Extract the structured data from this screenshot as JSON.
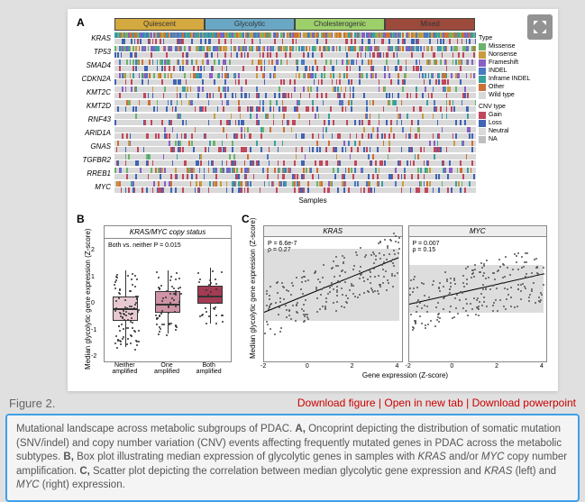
{
  "panelA": {
    "label": "A",
    "headers": [
      {
        "label": "Quiescent",
        "color": "#d4a93f"
      },
      {
        "label": "Glycolytic",
        "color": "#6aa7c4"
      },
      {
        "label": "Cholesterogenic",
        "color": "#9dcf6b"
      },
      {
        "label": "Mixed",
        "color": "#9c4a3c"
      }
    ],
    "genes": [
      "KRAS",
      "TP53",
      "SMAD4",
      "CDKN2A",
      "KMT2C",
      "KMT2D",
      "RNF43",
      "ARID1A",
      "GNAS",
      "TGFBR2",
      "RREB1",
      "MYC"
    ],
    "samples_label": "Samples",
    "legend_mut": {
      "title": "Type",
      "items": [
        {
          "label": "Missense",
          "color": "#6bb36b"
        },
        {
          "label": "Nonsense",
          "color": "#c99b3e"
        },
        {
          "label": "Frameshift",
          "color": "#8a5fc2"
        },
        {
          "label": "INDEL",
          "color": "#4a78c2"
        },
        {
          "label": "Inframe INDEL",
          "color": "#3aa09e"
        },
        {
          "label": "Other",
          "color": "#cc7133"
        },
        {
          "label": "Wild type",
          "color": "#d9d9d9"
        }
      ]
    },
    "legend_cnv": {
      "title": "CNV type",
      "items": [
        {
          "label": "Gain",
          "color": "#c0475d"
        },
        {
          "label": "Loss",
          "color": "#3f64b3"
        },
        {
          "label": "Neutral",
          "color": "#d9d9d9"
        },
        {
          "label": "NA",
          "color": "#bfbfbf"
        }
      ]
    },
    "mut_density": [
      0.95,
      0.7,
      0.35,
      0.35,
      0.2,
      0.2,
      0.1,
      0.1,
      0.1,
      0.08,
      0.3,
      0.3
    ],
    "cells_per_group": 60
  },
  "panelB": {
    "label": "B",
    "title": "KRAS/MYC copy status",
    "annotation": "Both vs. neither P = 0.015",
    "y_label": "Median glycolytic gene expression (Z-score)",
    "ylim": [
      -2,
      2
    ],
    "ytick_step": 1,
    "categories": [
      {
        "label": "Neither\namplified",
        "color": "#e8c9d2",
        "median": -0.15,
        "q1": -0.6,
        "q3": 0.3,
        "low": -1.6,
        "high": 1.3,
        "n": 90
      },
      {
        "label": "One\namplified",
        "color": "#cf94a5",
        "median": 0.05,
        "q1": -0.3,
        "q3": 0.5,
        "low": -1.1,
        "high": 1.3,
        "n": 60
      },
      {
        "label": "Both\namplified",
        "color": "#a43b55",
        "median": 0.35,
        "q1": 0.05,
        "q3": 0.7,
        "low": -0.7,
        "high": 1.4,
        "n": 30
      }
    ],
    "jitter_color": "#333333"
  },
  "panelC": {
    "label": "C",
    "y_label": "Median glycolytic gene expression (Z-score)",
    "x_label": "Gene expression (Z-score)",
    "xlim": [
      -2,
      4
    ],
    "xtick_vals": [
      -2,
      0,
      2,
      4
    ],
    "ylim": [
      -2,
      2
    ],
    "ytick_step": 1,
    "subplots": [
      {
        "title": "KRAS",
        "stats": "P = 6.6e-7\nρ = 0.27",
        "n": 220,
        "slope": 0.27,
        "intercept": 0.0
      },
      {
        "title": "MYC",
        "stats": "P = 0.007\nρ = 0.15",
        "n": 220,
        "slope": 0.15,
        "intercept": 0.0
      }
    ],
    "point_color": "#555555",
    "trend_color": "#000000",
    "band_color": "rgba(120,120,120,0.25)"
  },
  "figure_meta": {
    "figure_label": "Figure 2.",
    "links": [
      "Download figure",
      "Open in new tab",
      "Download powerpoint"
    ],
    "caption_parts": {
      "intro": "Mutational landscape across metabolic subgroups of PDAC.",
      "A": "Oncoprint depicting the distribution of somatic mutation (SNV/indel) and copy number variation (CNV) events affecting frequently mutated genes in PDAC across the metabolic subtypes.",
      "B": "Box plot illustrating median expression of glycolytic genes in samples with ",
      "B_genes": "KRAS",
      "B_mid": " and/or ",
      "B_genes2": "MYC",
      "B_end": " copy number amplification.",
      "C": "Scatter plot depicting the correlation between median glycolytic gene expression and ",
      "C_g1": "KRAS",
      "C_mid": " (left) and ",
      "C_g2": "MYC",
      "C_end": " (right) expression."
    }
  },
  "expand_icon_label": "EL"
}
